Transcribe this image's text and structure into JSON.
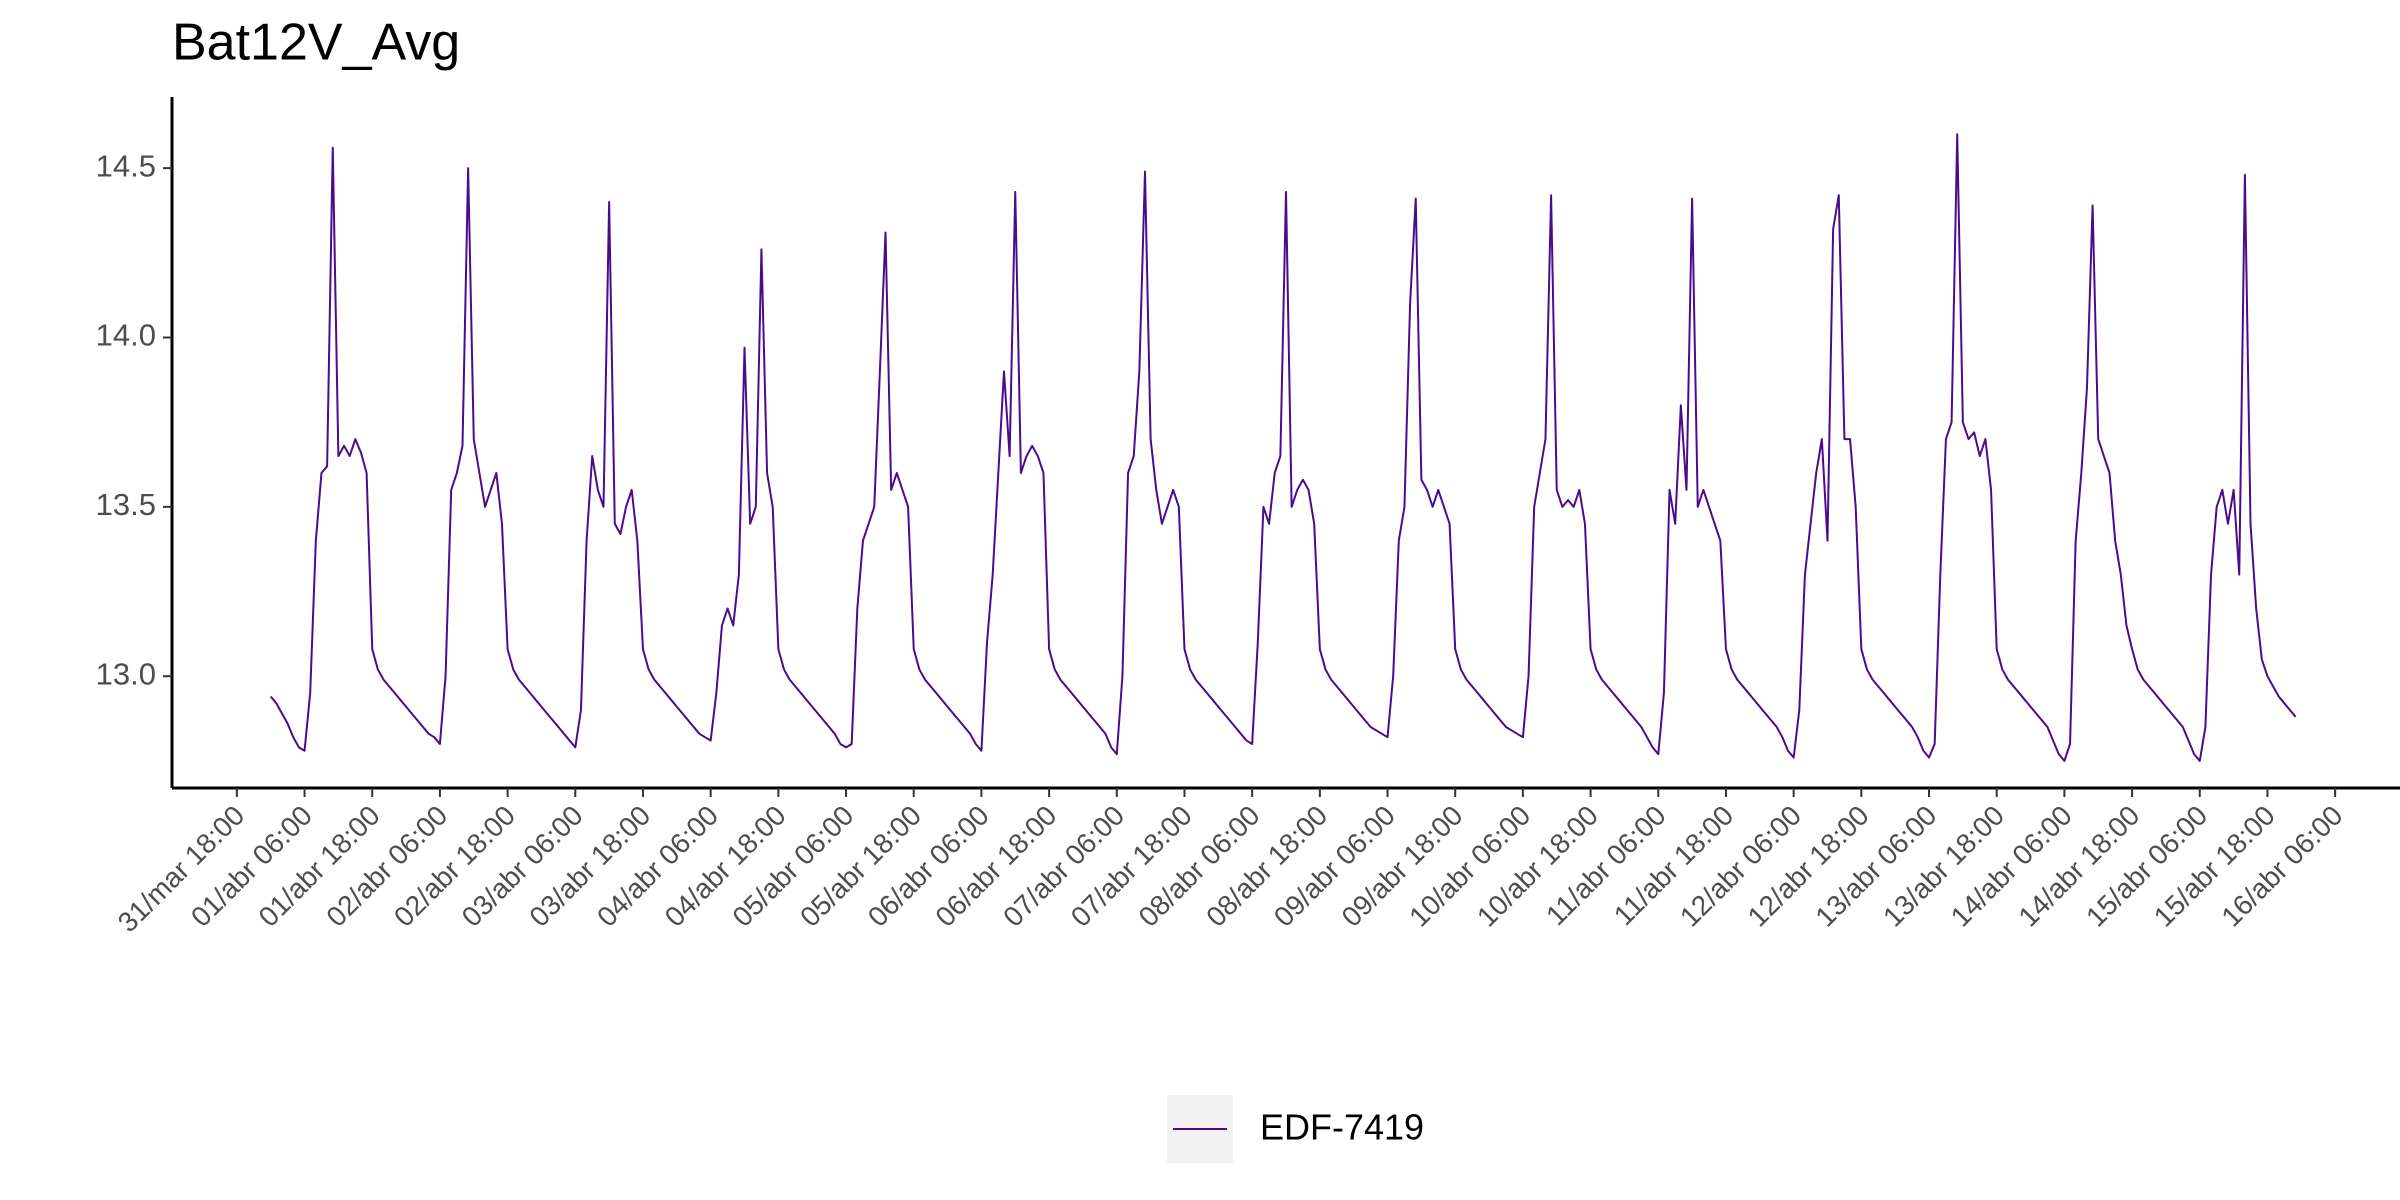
{
  "chart_data": {
    "type": "line",
    "title": "Bat12V_Avg",
    "xlim": [
      "31/mar 06:30",
      "16/abr 17:30"
    ],
    "xticks": [
      "31/mar 18:00",
      "01/abr 06:00",
      "01/abr 18:00",
      "02/abr 06:00",
      "02/abr 18:00",
      "03/abr 06:00",
      "03/abr 18:00",
      "04/abr 06:00",
      "04/abr 18:00",
      "05/abr 06:00",
      "05/abr 18:00",
      "06/abr 06:00",
      "06/abr 18:00",
      "07/abr 06:00",
      "07/abr 18:00",
      "08/abr 06:00",
      "08/abr 18:00",
      "09/abr 06:00",
      "09/abr 18:00",
      "10/abr 06:00",
      "10/abr 18:00",
      "11/abr 06:00",
      "11/abr 18:00",
      "12/abr 06:00",
      "12/abr 18:00",
      "13/abr 06:00",
      "13/abr 18:00",
      "14/abr 06:00",
      "14/abr 18:00",
      "15/abr 06:00",
      "15/abr 18:00",
      "16/abr 06:00"
    ],
    "ylim": [
      12.67,
      14.71
    ],
    "yticks": [
      {
        "value": 13,
        "label": "13.0"
      },
      13.5,
      {
        "value": 14,
        "label": "14.0"
      },
      14.5
    ],
    "grid": false,
    "legend": "bottom",
    "x": [
      "01/abr 00:00",
      "01/abr 01:00",
      "01/abr 02:00",
      "01/abr 03:00",
      "01/abr 04:00",
      "01/abr 05:00",
      "01/abr 06:00",
      "01/abr 07:00",
      "01/abr 08:00",
      "01/abr 09:00",
      "01/abr 10:00",
      "01/abr 11:00",
      "01/abr 12:00",
      "01/abr 13:00",
      "01/abr 14:00",
      "01/abr 15:00",
      "01/abr 16:00",
      "01/abr 17:00",
      "01/abr 18:00",
      "01/abr 19:00",
      "01/abr 20:00",
      "01/abr 21:00",
      "01/abr 22:00",
      "01/abr 23:00",
      "02/abr 00:00",
      "02/abr 01:00",
      "02/abr 02:00",
      "02/abr 03:00",
      "02/abr 04:00",
      "02/abr 05:00",
      "02/abr 06:00",
      "02/abr 07:00",
      "02/abr 08:00",
      "02/abr 09:00",
      "02/abr 10:00",
      "02/abr 11:00",
      "02/abr 12:00",
      "02/abr 13:00",
      "02/abr 14:00",
      "02/abr 15:00",
      "02/abr 16:00",
      "02/abr 17:00",
      "02/abr 18:00",
      "02/abr 19:00",
      "02/abr 20:00",
      "02/abr 21:00",
      "02/abr 22:00",
      "02/abr 23:00",
      "03/abr 00:00",
      "03/abr 01:00",
      "03/abr 02:00",
      "03/abr 03:00",
      "03/abr 04:00",
      "03/abr 05:00",
      "03/abr 06:00",
      "03/abr 07:00",
      "03/abr 08:00",
      "03/abr 09:00",
      "03/abr 10:00",
      "03/abr 11:00",
      "03/abr 12:00",
      "03/abr 13:00",
      "03/abr 14:00",
      "03/abr 15:00",
      "03/abr 16:00",
      "03/abr 17:00",
      "03/abr 18:00",
      "03/abr 19:00",
      "03/abr 20:00",
      "03/abr 21:00",
      "03/abr 22:00",
      "03/abr 23:00",
      "04/abr 00:00",
      "04/abr 01:00",
      "04/abr 02:00",
      "04/abr 03:00",
      "04/abr 04:00",
      "04/abr 05:00",
      "04/abr 06:00",
      "04/abr 07:00",
      "04/abr 08:00",
      "04/abr 09:00",
      "04/abr 10:00",
      "04/abr 11:00",
      "04/abr 12:00",
      "04/abr 13:00",
      "04/abr 14:00",
      "04/abr 15:00",
      "04/abr 16:00",
      "04/abr 17:00",
      "04/abr 18:00",
      "04/abr 19:00",
      "04/abr 20:00",
      "04/abr 21:00",
      "04/abr 22:00",
      "04/abr 23:00",
      "05/abr 00:00",
      "05/abr 01:00",
      "05/abr 02:00",
      "05/abr 03:00",
      "05/abr 04:00",
      "05/abr 05:00",
      "05/abr 06:00",
      "05/abr 07:00",
      "05/abr 08:00",
      "05/abr 09:00",
      "05/abr 10:00",
      "05/abr 11:00",
      "05/abr 12:00",
      "05/abr 13:00",
      "05/abr 14:00",
      "05/abr 15:00",
      "05/abr 16:00",
      "05/abr 17:00",
      "05/abr 18:00",
      "05/abr 19:00",
      "05/abr 20:00",
      "05/abr 21:00",
      "05/abr 22:00",
      "05/abr 23:00",
      "06/abr 00:00",
      "06/abr 01:00",
      "06/abr 02:00",
      "06/abr 03:00",
      "06/abr 04:00",
      "06/abr 05:00",
      "06/abr 06:00",
      "06/abr 07:00",
      "06/abr 08:00",
      "06/abr 09:00",
      "06/abr 10:00",
      "06/abr 11:00",
      "06/abr 12:00",
      "06/abr 13:00",
      "06/abr 14:00",
      "06/abr 15:00",
      "06/abr 16:00",
      "06/abr 17:00",
      "06/abr 18:00",
      "06/abr 19:00",
      "06/abr 20:00",
      "06/abr 21:00",
      "06/abr 22:00",
      "06/abr 23:00",
      "07/abr 00:00",
      "07/abr 01:00",
      "07/abr 02:00",
      "07/abr 03:00",
      "07/abr 04:00",
      "07/abr 05:00",
      "07/abr 06:00",
      "07/abr 07:00",
      "07/abr 08:00",
      "07/abr 09:00",
      "07/abr 10:00",
      "07/abr 11:00",
      "07/abr 12:00",
      "07/abr 13:00",
      "07/abr 14:00",
      "07/abr 15:00",
      "07/abr 16:00",
      "07/abr 17:00",
      "07/abr 18:00",
      "07/abr 19:00",
      "07/abr 20:00",
      "07/abr 21:00",
      "07/abr 22:00",
      "07/abr 23:00",
      "08/abr 00:00",
      "08/abr 01:00",
      "08/abr 02:00",
      "08/abr 03:00",
      "08/abr 04:00",
      "08/abr 05:00",
      "08/abr 06:00",
      "08/abr 07:00",
      "08/abr 08:00",
      "08/abr 09:00",
      "08/abr 10:00",
      "08/abr 11:00",
      "08/abr 12:00",
      "08/abr 13:00",
      "08/abr 14:00",
      "08/abr 15:00",
      "08/abr 16:00",
      "08/abr 17:00",
      "08/abr 18:00",
      "08/abr 19:00",
      "08/abr 20:00",
      "08/abr 21:00",
      "08/abr 22:00",
      "08/abr 23:00",
      "09/abr 00:00",
      "09/abr 01:00",
      "09/abr 02:00",
      "09/abr 03:00",
      "09/abr 04:00",
      "09/abr 05:00",
      "09/abr 06:00",
      "09/abr 07:00",
      "09/abr 08:00",
      "09/abr 09:00",
      "09/abr 10:00",
      "09/abr 11:00",
      "09/abr 12:00",
      "09/abr 13:00",
      "09/abr 14:00",
      "09/abr 15:00",
      "09/abr 16:00",
      "09/abr 17:00",
      "09/abr 18:00",
      "09/abr 19:00",
      "09/abr 20:00",
      "09/abr 21:00",
      "09/abr 22:00",
      "09/abr 23:00",
      "10/abr 00:00",
      "10/abr 01:00",
      "10/abr 02:00",
      "10/abr 03:00",
      "10/abr 04:00",
      "10/abr 05:00",
      "10/abr 06:00",
      "10/abr 07:00",
      "10/abr 08:00",
      "10/abr 09:00",
      "10/abr 10:00",
      "10/abr 11:00",
      "10/abr 12:00",
      "10/abr 13:00",
      "10/abr 14:00",
      "10/abr 15:00",
      "10/abr 16:00",
      "10/abr 17:00",
      "10/abr 18:00",
      "10/abr 19:00",
      "10/abr 20:00",
      "10/abr 21:00",
      "10/abr 22:00",
      "10/abr 23:00",
      "11/abr 00:00",
      "11/abr 01:00",
      "11/abr 02:00",
      "11/abr 03:00",
      "11/abr 04:00",
      "11/abr 05:00",
      "11/abr 06:00",
      "11/abr 07:00",
      "11/abr 08:00",
      "11/abr 09:00",
      "11/abr 10:00",
      "11/abr 11:00",
      "11/abr 12:00",
      "11/abr 13:00",
      "11/abr 14:00",
      "11/abr 15:00",
      "11/abr 16:00",
      "11/abr 17:00",
      "11/abr 18:00",
      "11/abr 19:00",
      "11/abr 20:00",
      "11/abr 21:00",
      "11/abr 22:00",
      "11/abr 23:00",
      "12/abr 00:00",
      "12/abr 01:00",
      "12/abr 02:00",
      "12/abr 03:00",
      "12/abr 04:00",
      "12/abr 05:00",
      "12/abr 06:00",
      "12/abr 07:00",
      "12/abr 08:00",
      "12/abr 09:00",
      "12/abr 10:00",
      "12/abr 11:00",
      "12/abr 12:00",
      "12/abr 13:00",
      "12/abr 14:00",
      "12/abr 15:00",
      "12/abr 16:00",
      "12/abr 17:00",
      "12/abr 18:00",
      "12/abr 19:00",
      "12/abr 20:00",
      "12/abr 21:00",
      "12/abr 22:00",
      "12/abr 23:00",
      "13/abr 00:00",
      "13/abr 01:00",
      "13/abr 02:00",
      "13/abr 03:00",
      "13/abr 04:00",
      "13/abr 05:00",
      "13/abr 06:00",
      "13/abr 07:00",
      "13/abr 08:00",
      "13/abr 09:00",
      "13/abr 10:00",
      "13/abr 11:00",
      "13/abr 12:00",
      "13/abr 13:00",
      "13/abr 14:00",
      "13/abr 15:00",
      "13/abr 16:00",
      "13/abr 17:00",
      "13/abr 18:00",
      "13/abr 19:00",
      "13/abr 20:00",
      "13/abr 21:00",
      "13/abr 22:00",
      "13/abr 23:00",
      "14/abr 00:00",
      "14/abr 01:00",
      "14/abr 02:00",
      "14/abr 03:00",
      "14/abr 04:00",
      "14/abr 05:00",
      "14/abr 06:00",
      "14/abr 07:00",
      "14/abr 08:00",
      "14/abr 09:00",
      "14/abr 10:00",
      "14/abr 11:00",
      "14/abr 12:00",
      "14/abr 13:00",
      "14/abr 14:00",
      "14/abr 15:00",
      "14/abr 16:00",
      "14/abr 17:00",
      "14/abr 18:00",
      "14/abr 19:00",
      "14/abr 20:00",
      "14/abr 21:00",
      "14/abr 22:00",
      "14/abr 23:00",
      "15/abr 00:00",
      "15/abr 01:00",
      "15/abr 02:00",
      "15/abr 03:00",
      "15/abr 04:00",
      "15/abr 05:00",
      "15/abr 06:00",
      "15/abr 07:00",
      "15/abr 08:00",
      "15/abr 09:00",
      "15/abr 10:00",
      "15/abr 11:00",
      "15/abr 12:00",
      "15/abr 13:00",
      "15/abr 14:00",
      "15/abr 15:00",
      "15/abr 16:00",
      "15/abr 17:00",
      "15/abr 18:00",
      "15/abr 19:00",
      "15/abr 20:00",
      "15/abr 21:00",
      "15/abr 22:00",
      "15/abr 23:00"
    ],
    "series": [
      {
        "name": "EDF-7419",
        "color": "#4B0C8C",
        "values": [
          12.94,
          12.92,
          12.89,
          12.86,
          12.82,
          12.79,
          12.78,
          12.95,
          13.4,
          13.6,
          13.62,
          14.56,
          13.65,
          13.68,
          13.65,
          13.7,
          13.66,
          13.6,
          13.08,
          13.02,
          12.99,
          12.97,
          12.95,
          12.93,
          12.91,
          12.89,
          12.87,
          12.85,
          12.83,
          12.82,
          12.8,
          13.0,
          13.55,
          13.6,
          13.68,
          14.5,
          13.7,
          13.6,
          13.5,
          13.55,
          13.6,
          13.45,
          13.08,
          13.02,
          12.99,
          12.97,
          12.95,
          12.93,
          12.91,
          12.89,
          12.87,
          12.85,
          12.83,
          12.81,
          12.79,
          12.9,
          13.4,
          13.65,
          13.55,
          13.5,
          14.4,
          13.45,
          13.42,
          13.5,
          13.55,
          13.4,
          13.08,
          13.02,
          12.99,
          12.97,
          12.95,
          12.93,
          12.91,
          12.89,
          12.87,
          12.85,
          12.83,
          12.82,
          12.81,
          12.95,
          13.15,
          13.2,
          13.15,
          13.3,
          13.97,
          13.45,
          13.5,
          14.26,
          13.6,
          13.5,
          13.08,
          13.02,
          12.99,
          12.97,
          12.95,
          12.93,
          12.91,
          12.89,
          12.87,
          12.85,
          12.83,
          12.8,
          12.79,
          12.8,
          13.2,
          13.4,
          13.45,
          13.5,
          13.9,
          14.31,
          13.55,
          13.6,
          13.55,
          13.5,
          13.08,
          13.02,
          12.99,
          12.97,
          12.95,
          12.93,
          12.91,
          12.89,
          12.87,
          12.85,
          12.83,
          12.8,
          12.78,
          13.1,
          13.3,
          13.6,
          13.9,
          13.65,
          14.43,
          13.6,
          13.65,
          13.68,
          13.65,
          13.6,
          13.08,
          13.02,
          12.99,
          12.97,
          12.95,
          12.93,
          12.91,
          12.89,
          12.87,
          12.85,
          12.83,
          12.79,
          12.77,
          13.0,
          13.6,
          13.65,
          13.9,
          14.49,
          13.7,
          13.55,
          13.45,
          13.5,
          13.55,
          13.5,
          13.08,
          13.02,
          12.99,
          12.97,
          12.95,
          12.93,
          12.91,
          12.89,
          12.87,
          12.85,
          12.83,
          12.81,
          12.8,
          13.1,
          13.5,
          13.45,
          13.6,
          13.65,
          14.43,
          13.5,
          13.55,
          13.58,
          13.55,
          13.45,
          13.08,
          13.02,
          12.99,
          12.97,
          12.95,
          12.93,
          12.91,
          12.89,
          12.87,
          12.85,
          12.84,
          12.83,
          12.82,
          13.0,
          13.4,
          13.5,
          14.1,
          14.41,
          13.58,
          13.55,
          13.5,
          13.55,
          13.5,
          13.45,
          13.08,
          13.02,
          12.99,
          12.97,
          12.95,
          12.93,
          12.91,
          12.89,
          12.87,
          12.85,
          12.84,
          12.83,
          12.82,
          13.0,
          13.5,
          13.6,
          13.7,
          14.42,
          13.55,
          13.5,
          13.52,
          13.5,
          13.55,
          13.45,
          13.08,
          13.02,
          12.99,
          12.97,
          12.95,
          12.93,
          12.91,
          12.89,
          12.87,
          12.85,
          12.82,
          12.79,
          12.77,
          12.95,
          13.55,
          13.45,
          13.8,
          13.55,
          14.41,
          13.5,
          13.55,
          13.5,
          13.45,
          13.4,
          13.08,
          13.02,
          12.99,
          12.97,
          12.95,
          12.93,
          12.91,
          12.89,
          12.87,
          12.85,
          12.82,
          12.78,
          12.76,
          12.9,
          13.3,
          13.45,
          13.6,
          13.7,
          13.4,
          14.32,
          14.42,
          13.7,
          13.7,
          13.5,
          13.08,
          13.02,
          12.99,
          12.97,
          12.95,
          12.93,
          12.91,
          12.89,
          12.87,
          12.85,
          12.82,
          12.78,
          12.76,
          12.8,
          13.3,
          13.7,
          13.75,
          14.6,
          13.75,
          13.7,
          13.72,
          13.65,
          13.7,
          13.55,
          13.08,
          13.02,
          12.99,
          12.97,
          12.95,
          12.93,
          12.91,
          12.89,
          12.87,
          12.85,
          12.81,
          12.77,
          12.75,
          12.8,
          13.4,
          13.6,
          13.85,
          14.39,
          13.7,
          13.65,
          13.6,
          13.4,
          13.3,
          13.15,
          13.08,
          13.02,
          12.99,
          12.97,
          12.95,
          12.93,
          12.91,
          12.89,
          12.87,
          12.85,
          12.81,
          12.77,
          12.75,
          12.85,
          13.3,
          13.5,
          13.55,
          13.45,
          13.55,
          13.3,
          14.48,
          13.45,
          13.2,
          13.05,
          13.0,
          12.97,
          12.94,
          12.92,
          12.9,
          12.88
        ]
      }
    ]
  }
}
